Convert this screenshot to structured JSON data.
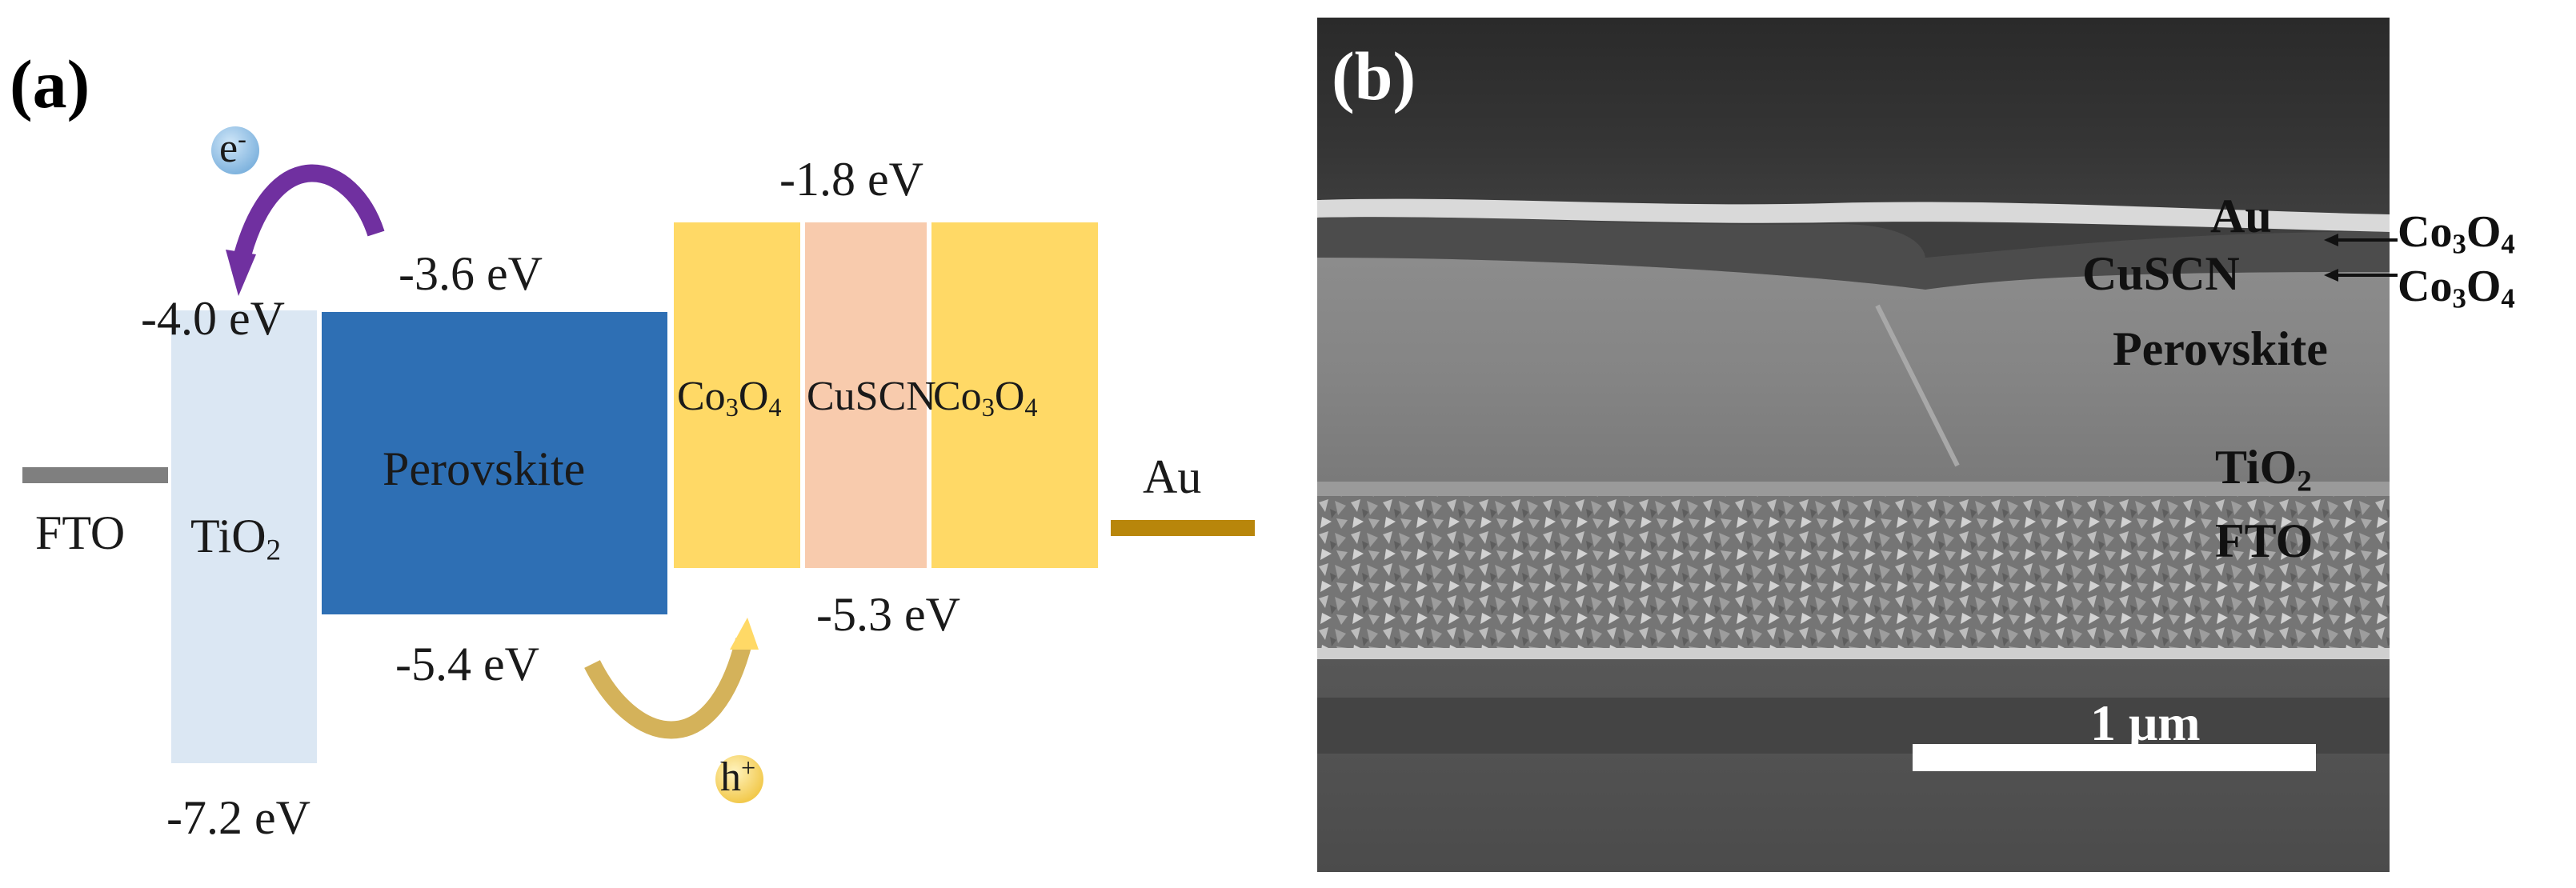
{
  "panel_a": {
    "label": "(a)",
    "fto": "FTO",
    "tio2": {
      "base": "TiO",
      "sub": "2"
    },
    "perovskite": "Perovskite",
    "co3o4_left": {
      "a": "Co",
      "s1": "3",
      "b": "O",
      "s2": "4"
    },
    "cuscn": "CuSCN",
    "co3o4_right": {
      "a": "Co",
      "s1": "3",
      "b": "O",
      "s2": "4"
    },
    "au": "Au",
    "energies": {
      "tio2_cb": "-4.0 eV",
      "perovskite_cb": "-3.6 eV",
      "htl_cb": "-1.8 eV",
      "perovskite_vb": "-5.4 eV",
      "htl_vb": "-5.3 eV",
      "tio2_vb": "-7.2 eV"
    },
    "electron": {
      "base": "e",
      "sup": "-"
    },
    "hole": {
      "base": "h",
      "sup": "+"
    },
    "colors": {
      "fto": "#7f7f7f",
      "tio2": "#dbe7f3",
      "perovskite": "#2e6fb4",
      "co3o4": "#ffd966",
      "cuscn": "#f8cbad",
      "au": "#b8860b",
      "electron_arrow": "#7030a0",
      "hole_arrow": "#d4b25a"
    }
  },
  "panel_b": {
    "label": "(b)",
    "layers": {
      "au": "Au",
      "cuscn": "CuSCN",
      "perovskite": "Perovskite",
      "tio2": {
        "base": "TiO",
        "sub": "2"
      },
      "fto": "FTO"
    },
    "side_labels": [
      {
        "a": "Co",
        "s1": "3",
        "b": "O",
        "s2": "4"
      },
      {
        "a": "Co",
        "s1": "3",
        "b": "O",
        "s2": "4"
      }
    ],
    "scale_bar": "1 μm"
  }
}
